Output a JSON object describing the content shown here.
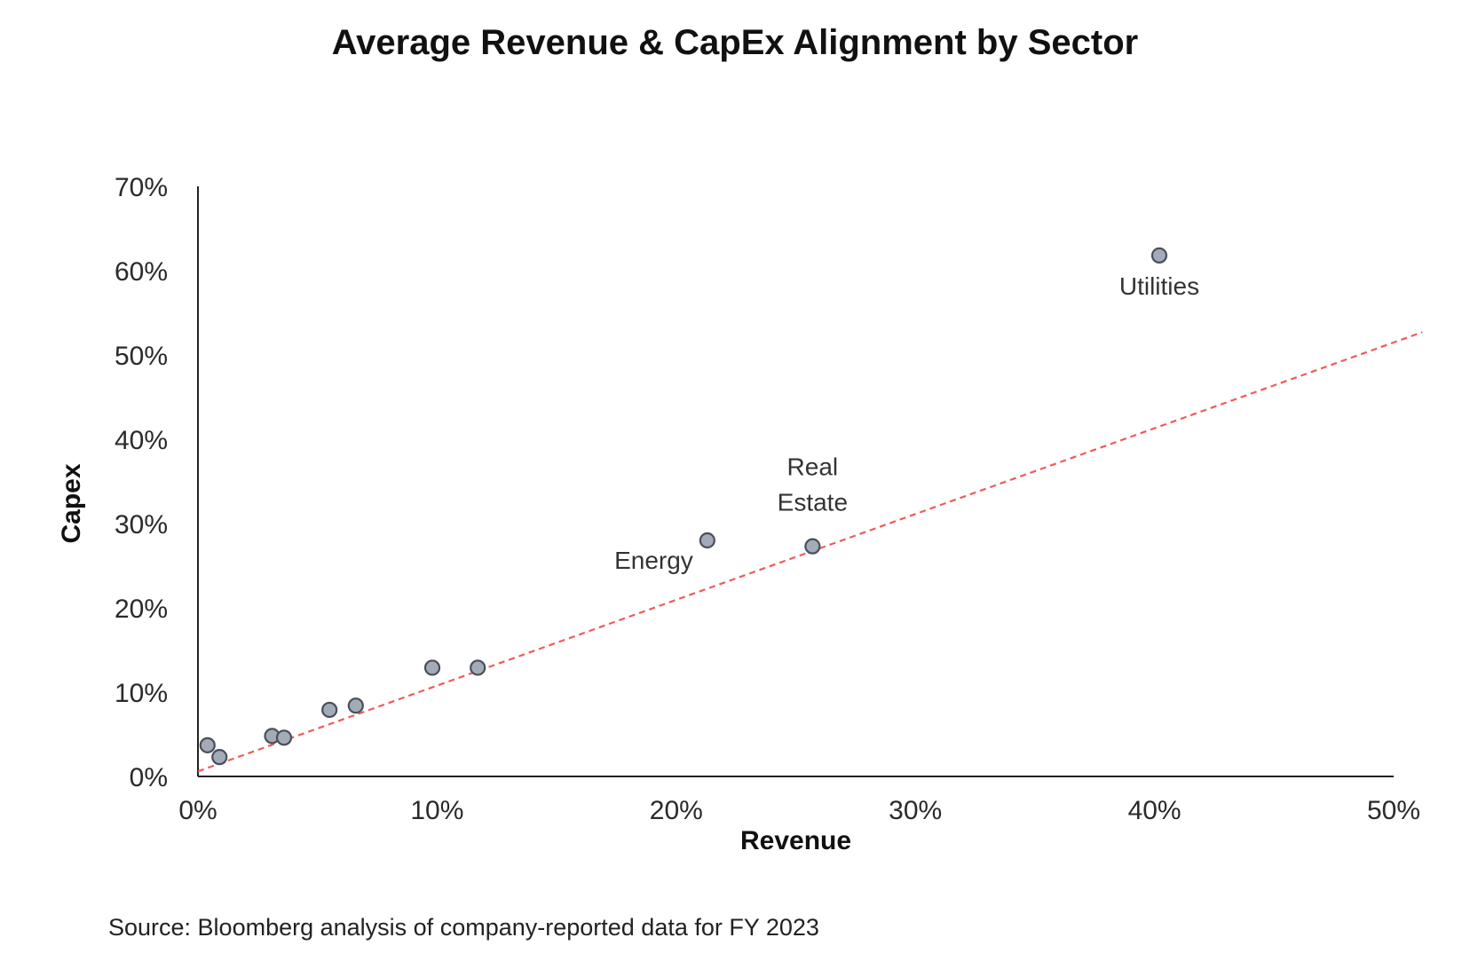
{
  "colors": {
    "marker_fill": "#a3aab8",
    "marker_stroke": "#4a4f59",
    "trendline": "#f05a5a",
    "axis": "#222222"
  },
  "source_note": "Source: Bloomberg analysis of company-reported data for FY 2023",
  "chart_data": {
    "type": "scatter",
    "title": "Average Revenue & CapEx Alignment by Sector",
    "xlabel": "Revenue",
    "ylabel": "Capex",
    "xlim": [
      0,
      50
    ],
    "ylim": [
      0,
      70
    ],
    "x_ticks": [
      0,
      10,
      20,
      30,
      40,
      50
    ],
    "y_ticks": [
      0,
      10,
      20,
      30,
      40,
      50,
      60,
      70
    ],
    "x_tick_labels": [
      "0%",
      "10%",
      "20%",
      "30%",
      "40%",
      "50%"
    ],
    "y_tick_labels": [
      "0%",
      "10%",
      "20%",
      "30%",
      "40%",
      "50%",
      "60%",
      "70%"
    ],
    "grid": false,
    "legend": "none",
    "points": [
      {
        "x": 0.4,
        "y": 3.7,
        "label": ""
      },
      {
        "x": 0.9,
        "y": 2.3,
        "label": ""
      },
      {
        "x": 3.1,
        "y": 4.8,
        "label": ""
      },
      {
        "x": 3.6,
        "y": 4.6,
        "label": ""
      },
      {
        "x": 5.5,
        "y": 7.9,
        "label": ""
      },
      {
        "x": 6.6,
        "y": 8.4,
        "label": ""
      },
      {
        "x": 9.8,
        "y": 12.9,
        "label": ""
      },
      {
        "x": 11.7,
        "y": 12.9,
        "label": ""
      },
      {
        "x": 21.3,
        "y": 28.0,
        "label": "Energy"
      },
      {
        "x": 25.7,
        "y": 27.3,
        "label": "Real\nEstate"
      },
      {
        "x": 40.2,
        "y": 61.8,
        "label": "Utilities"
      }
    ],
    "trendline": {
      "style": "dashed",
      "x": [
        0,
        51.2
      ],
      "y": [
        0.6,
        52.7
      ]
    }
  }
}
